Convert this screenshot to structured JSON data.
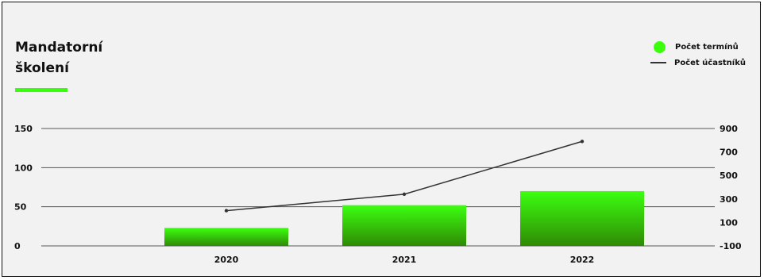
{
  "colors": {
    "background": "#f2f2f2",
    "accent": "#39ff0d",
    "bar_top": "#3cff10",
    "bar_bottom": "#2f8a05",
    "line": "#333333",
    "grid": "#555555"
  },
  "title": {
    "line1": "Mandatorní",
    "line2": "školení"
  },
  "legend": {
    "bars_label": "Počet termínů",
    "line_label": "Počet účastníků"
  },
  "chart_data": {
    "type": "bar+line",
    "categories": [
      "2020",
      "2021",
      "2022"
    ],
    "series": [
      {
        "name": "Počet termínů",
        "type": "bar",
        "axis": "left",
        "values": [
          23,
          52,
          70
        ]
      },
      {
        "name": "Počet účastníků",
        "type": "line",
        "axis": "right",
        "values": [
          200,
          340,
          790
        ]
      }
    ],
    "y_left": {
      "ticks": [
        0,
        50,
        100,
        150
      ],
      "tick_labels": [
        "0",
        "50",
        "100",
        "150"
      ],
      "range": [
        0,
        150
      ]
    },
    "y_right": {
      "ticks": [
        -100,
        100,
        300,
        500,
        700,
        900
      ],
      "tick_labels": [
        "-100",
        "100",
        "300",
        "500",
        "700",
        "900"
      ],
      "range": [
        -100,
        900
      ]
    },
    "gridlines": true,
    "legend_position": "top-right"
  }
}
